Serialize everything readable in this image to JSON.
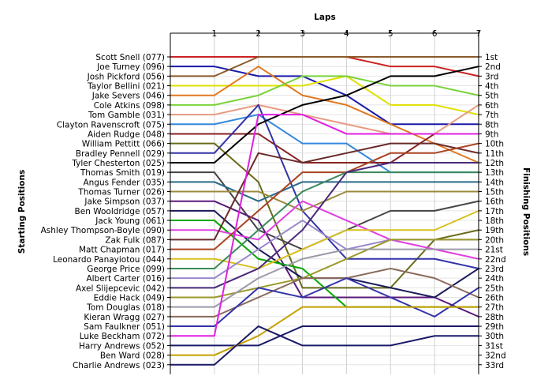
{
  "chart_data": {
    "type": "line",
    "title": "",
    "xlabel_top": "Laps",
    "ylabel_left": "Starting Positions",
    "ylabel_right": "Finishing Positions",
    "laps": [
      1,
      2,
      3,
      4,
      5,
      6,
      7
    ],
    "start_labels": [
      "Scott Snell (077)",
      "Joe Turney (096)",
      "Josh Pickford (056)",
      "Taylor Bellini (021)",
      "Jake Severs (046)",
      "Cole Atkins (098)",
      "Tom Gamble (031)",
      "Clayton Ravenscroft (075)",
      "Aiden Rudge (048)",
      "William Pettitt (066)",
      "Bradley Pennell (029)",
      "Tyler Chesterton (025)",
      "Thomas Smith (019)",
      "Angus Fender (035)",
      "Thomas Turner (026)",
      "Jake Simpson (037)",
      "Ben Wooldridge (057)",
      "Jack Young (061)",
      "Ashley Thompson-Boyle (090)",
      "Zak Fulk (087)",
      "Matt Chapman (017)",
      "Leonardo Panayiotou (044)",
      "George Price (099)",
      "Albert Carter (016)",
      "Axel Slijepcevic (042)",
      "Eddie Hack (049)",
      "Tom Douglas (018)",
      "Kieran Wragg (027)",
      "Sam Faulkner (051)",
      "Luke Beckham (072)",
      "Harry Andrews (052)",
      "Ben Ward (028)",
      "Charlie Andrews (023)"
    ],
    "finish_labels": [
      "1st",
      "2nd",
      "3rd",
      "4th",
      "5th",
      "6th",
      "7th",
      "8th",
      "9th",
      "10th",
      "11th",
      "12th",
      "13th",
      "14th",
      "15th",
      "16th",
      "17th",
      "18th",
      "19th",
      "20th",
      "21st",
      "22nd",
      "23rd",
      "24th",
      "25th",
      "26th",
      "27th",
      "28th",
      "29th",
      "30th",
      "31st",
      "32nd",
      "33rd"
    ],
    "series": [
      {
        "start": 1,
        "positions": [
          1,
          1,
          1,
          1,
          2,
          2,
          3
        ],
        "color": "#cc2222"
      },
      {
        "start": 2,
        "positions": [
          2,
          3,
          3,
          5,
          8,
          8,
          8
        ],
        "color": "#1a1aaa"
      },
      {
        "start": 3,
        "positions": [
          3,
          1,
          1,
          1,
          1,
          1,
          1
        ],
        "color": "#8b5a2b"
      },
      {
        "start": 4,
        "positions": [
          4,
          4,
          4,
          3,
          6,
          6,
          7
        ],
        "color": "#e0e000"
      },
      {
        "start": 5,
        "positions": [
          5,
          2,
          5,
          6,
          8,
          10,
          12
        ],
        "color": "#e07820"
      },
      {
        "start": 6,
        "positions": [
          6,
          5,
          3,
          3,
          4,
          4,
          5
        ],
        "color": "#7ad23a"
      },
      {
        "start": 7,
        "positions": [
          7,
          6,
          7,
          8,
          9,
          9,
          6
        ],
        "color": "#e89a80"
      },
      {
        "start": 8,
        "positions": [
          8,
          7,
          10,
          10,
          13,
          13,
          13
        ],
        "color": "#3388dd"
      },
      {
        "start": 9,
        "positions": [
          9,
          9,
          12,
          12,
          12,
          9,
          9
        ],
        "color": "#882222"
      },
      {
        "start": 10,
        "positions": [
          10,
          14,
          25,
          25,
          25,
          20,
          19
        ],
        "color": "#6a6a1a"
      },
      {
        "start": 11,
        "positions": [
          11,
          6,
          17,
          22,
          22,
          22,
          23
        ],
        "color": "#3333aa"
      },
      {
        "start": 12,
        "positions": [
          12,
          8,
          6,
          5,
          3,
          3,
          2
        ],
        "color": "#000000"
      },
      {
        "start": 13,
        "positions": [
          13,
          19,
          21,
          19,
          17,
          17,
          16
        ],
        "color": "#444444"
      },
      {
        "start": 14,
        "positions": [
          14,
          16,
          14,
          14,
          14,
          14,
          14
        ],
        "color": "#2a6a8a"
      },
      {
        "start": 15,
        "positions": [
          15,
          15,
          17,
          15,
          15,
          15,
          15
        ],
        "color": "#9a8a3a"
      },
      {
        "start": 16,
        "positions": [
          16,
          18,
          26,
          26,
          26,
          26,
          28
        ],
        "color": "#5a1a7a"
      },
      {
        "start": 17,
        "positions": [
          17,
          21,
          24,
          24,
          25,
          26,
          23
        ],
        "color": "#1a1a5a"
      },
      {
        "start": 18,
        "positions": [
          18,
          22,
          23,
          27,
          27,
          27,
          27
        ],
        "color": "#00aa00"
      },
      {
        "start": 19,
        "positions": [
          19,
          20,
          16,
          18,
          20,
          21,
          22
        ],
        "color": "#e040e0"
      },
      {
        "start": 20,
        "positions": [
          20,
          11,
          12,
          11,
          10,
          10,
          11
        ],
        "color": "#6a2a2a"
      },
      {
        "start": 21,
        "positions": [
          21,
          17,
          13,
          13,
          11,
          11,
          10
        ],
        "color": "#aa4422"
      },
      {
        "start": 22,
        "positions": [
          22,
          23,
          21,
          19,
          19,
          19,
          17
        ],
        "color": "#d8c020"
      },
      {
        "start": 23,
        "positions": [
          23,
          19,
          15,
          13,
          13,
          13,
          13
        ],
        "color": "#3a8a5a"
      },
      {
        "start": 24,
        "positions": [
          24,
          21,
          18,
          21,
          20,
          20,
          20
        ],
        "color": "#9988cc"
      },
      {
        "start": 25,
        "positions": [
          25,
          23,
          19,
          13,
          12,
          12,
          12
        ],
        "color": "#4a2a7a"
      },
      {
        "start": 26,
        "positions": [
          26,
          25,
          24,
          22,
          20,
          20,
          20
        ],
        "color": "#9a9a2a"
      },
      {
        "start": 27,
        "positions": [
          27,
          24,
          22,
          21,
          21,
          21,
          21
        ],
        "color": "#9a9aaa"
      },
      {
        "start": 28,
        "positions": [
          28,
          26,
          24,
          24,
          23,
          24,
          26
        ],
        "color": "#8a6a5a"
      },
      {
        "start": 29,
        "positions": [
          29,
          25,
          26,
          24,
          26,
          28,
          25
        ],
        "color": "#3333aa"
      },
      {
        "start": 30,
        "positions": [
          30,
          7,
          7,
          9,
          9,
          9,
          9
        ],
        "color": "#e020e0"
      },
      {
        "start": 31,
        "positions": [
          31,
          31,
          29,
          29,
          29,
          29,
          29
        ],
        "color": "#1a1a6a"
      },
      {
        "start": 32,
        "positions": [
          32,
          30,
          27,
          27,
          27,
          27,
          27
        ],
        "color": "#c8a000"
      },
      {
        "start": 33,
        "positions": [
          33,
          29,
          31,
          31,
          31,
          30,
          30
        ],
        "color": "#1a1a6a"
      }
    ]
  }
}
